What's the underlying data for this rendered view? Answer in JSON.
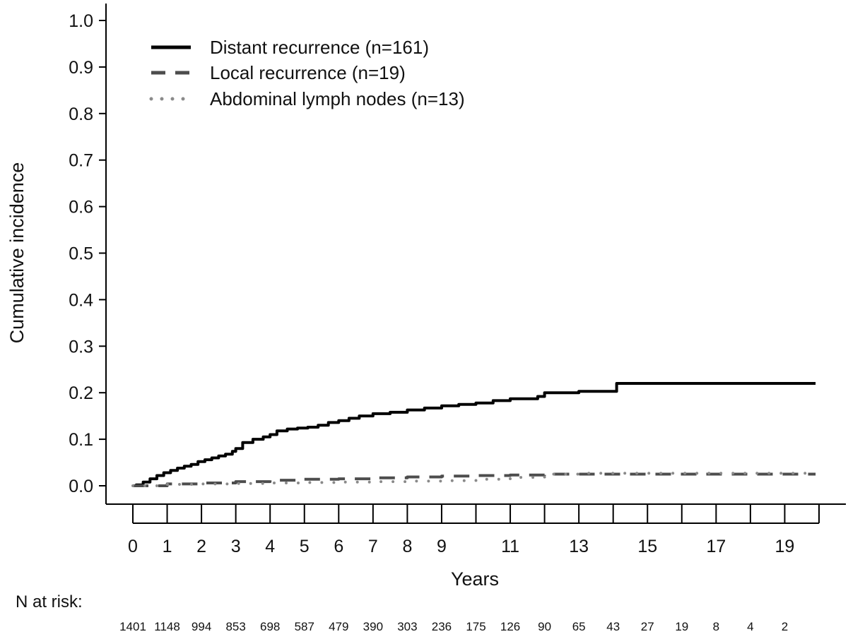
{
  "chart_data": {
    "type": "line",
    "title": "",
    "xlabel": "Years",
    "ylabel": "Cumulative incidence",
    "xlim": [
      0,
      20
    ],
    "ylim": [
      0,
      1.0
    ],
    "grid": false,
    "legend_position": "top-left",
    "y_ticks": [
      0.0,
      0.1,
      0.2,
      0.3,
      0.4,
      0.5,
      0.6,
      0.7,
      0.8,
      0.9,
      1.0
    ],
    "y_tick_labels": [
      "0.0",
      "0.1",
      "0.2",
      "0.3",
      "0.4",
      "0.5",
      "0.6",
      "0.7",
      "0.8",
      "0.9",
      "1.0"
    ],
    "x_ticks": [
      0,
      1,
      2,
      3,
      4,
      5,
      6,
      7,
      8,
      9,
      10,
      11,
      12,
      13,
      14,
      15,
      16,
      17,
      18,
      19,
      20
    ],
    "x_tick_labels": [
      "0",
      "1",
      "2",
      "3",
      "4",
      "5",
      "6",
      "7",
      "8",
      "9",
      "",
      "11",
      "",
      "13",
      "",
      "15",
      "",
      "17",
      "",
      "19",
      ""
    ],
    "series": [
      {
        "name": "Distant recurrence (n=161)",
        "style": "solid",
        "color": "#000000",
        "x": [
          0,
          0.1,
          0.3,
          0.5,
          0.7,
          0.9,
          1.1,
          1.3,
          1.5,
          1.7,
          1.9,
          2.1,
          2.3,
          2.5,
          2.7,
          2.9,
          3.0,
          3.2,
          3.5,
          3.8,
          4.0,
          4.2,
          4.5,
          4.8,
          5.1,
          5.4,
          5.7,
          6.0,
          6.3,
          6.6,
          7.0,
          7.5,
          8.0,
          8.5,
          9.0,
          9.5,
          10.0,
          10.5,
          11.0,
          11.8,
          12.0,
          13.0,
          14.0,
          14.1,
          15.0,
          16.0,
          17.0,
          18.0,
          19.0,
          19.9
        ],
        "y": [
          0.0,
          0.002,
          0.008,
          0.015,
          0.022,
          0.028,
          0.033,
          0.038,
          0.042,
          0.046,
          0.052,
          0.056,
          0.06,
          0.064,
          0.068,
          0.074,
          0.08,
          0.093,
          0.1,
          0.105,
          0.11,
          0.118,
          0.122,
          0.124,
          0.126,
          0.13,
          0.136,
          0.14,
          0.145,
          0.15,
          0.155,
          0.158,
          0.163,
          0.167,
          0.172,
          0.175,
          0.178,
          0.183,
          0.187,
          0.192,
          0.2,
          0.203,
          0.203,
          0.22,
          0.22,
          0.22,
          0.22,
          0.22,
          0.22,
          0.22
        ]
      },
      {
        "name": "Local recurrence (n=19)",
        "style": "dashed",
        "color": "#4d4d4d",
        "x": [
          0,
          1,
          2,
          3,
          4,
          5,
          6,
          7,
          8,
          9,
          10,
          11,
          12,
          13,
          14,
          15,
          16,
          17,
          18,
          19,
          19.9
        ],
        "y": [
          0.0,
          0.004,
          0.006,
          0.009,
          0.012,
          0.014,
          0.015,
          0.017,
          0.019,
          0.021,
          0.022,
          0.023,
          0.025,
          0.025,
          0.025,
          0.025,
          0.025,
          0.025,
          0.025,
          0.025,
          0.025
        ]
      },
      {
        "name": "Abdominal lymph nodes (n=13)",
        "style": "dotted",
        "color": "#8a8a8a",
        "x": [
          0,
          1,
          2,
          3,
          4,
          5,
          6,
          7,
          8,
          9,
          10,
          11,
          12,
          13,
          14,
          15,
          16,
          17,
          18,
          19,
          19.9
        ],
        "y": [
          0.0,
          0.003,
          0.004,
          0.005,
          0.006,
          0.007,
          0.008,
          0.009,
          0.01,
          0.011,
          0.014,
          0.018,
          0.025,
          0.027,
          0.027,
          0.027,
          0.027,
          0.027,
          0.027,
          0.027,
          0.027
        ]
      }
    ],
    "risk_table": {
      "title": "N at risk:",
      "values": [
        "1401",
        "1148",
        "994",
        "853",
        "698",
        "587",
        "479",
        "390",
        "303",
        "236",
        "175",
        "126",
        "90",
        "65",
        "43",
        "27",
        "19",
        "8",
        "4",
        "2"
      ]
    }
  }
}
